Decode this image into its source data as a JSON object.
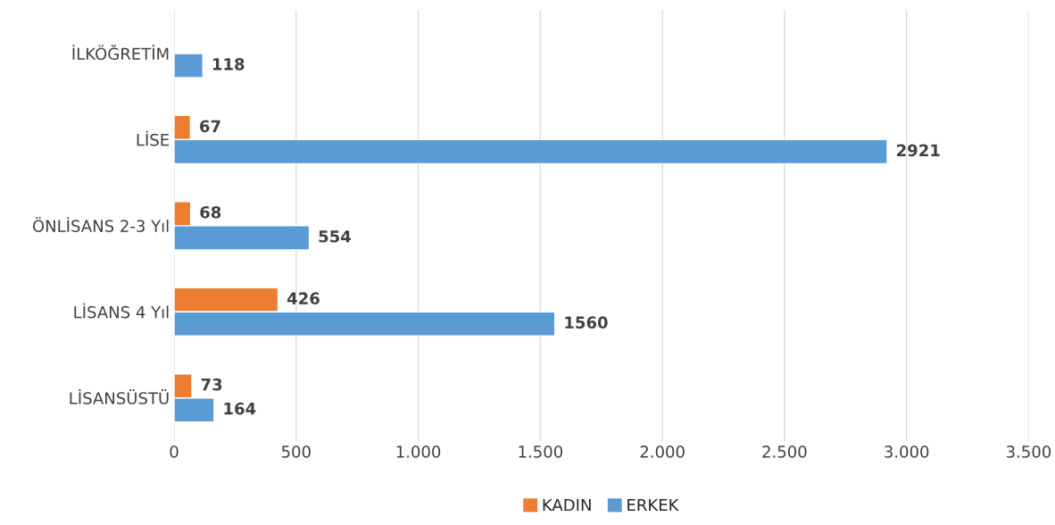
{
  "chart_data": {
    "type": "bar",
    "orientation": "horizontal",
    "categories": [
      "İLKÖĞRETİM",
      "LİSE",
      "ÖNLİSANS 2-3 Yıl",
      "LİSANS 4 Yıl",
      "LİSANSÜSTÜ"
    ],
    "series": [
      {
        "name": "KADIN",
        "color": "#ed7d31",
        "values": [
          null,
          67,
          68,
          426,
          73
        ]
      },
      {
        "name": "ERKEK",
        "color": "#5b9bd5",
        "values": [
          118,
          2921,
          554,
          1560,
          164
        ]
      }
    ],
    "xlim": [
      0,
      3500
    ],
    "xticks": [
      0,
      500,
      {
        "value": 1000,
        "label": "1.000"
      },
      {
        "value": 1500,
        "label": "1.500"
      },
      {
        "value": 2000,
        "label": "2.000"
      },
      {
        "value": 2500,
        "label": "2.500"
      },
      {
        "value": 3000,
        "label": "3.000"
      },
      {
        "value": 3500,
        "label": "3.500"
      }
    ],
    "grid": "x",
    "legend": "bottom",
    "data_labels": true
  }
}
